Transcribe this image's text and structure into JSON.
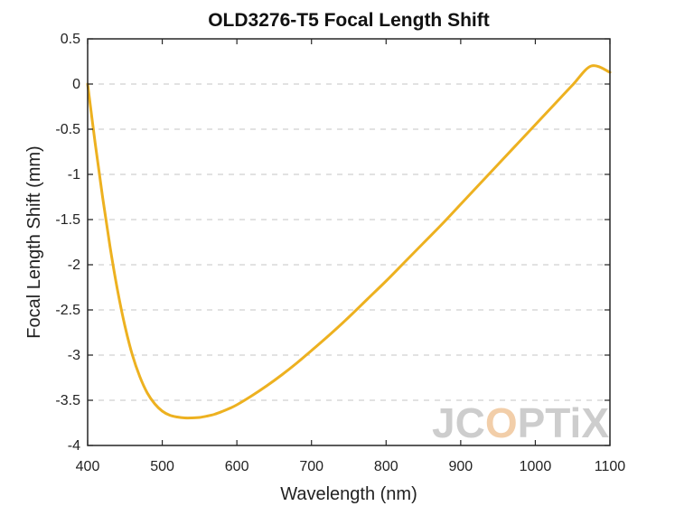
{
  "chart_data": {
    "type": "line",
    "title": "OLD3276-T5 Focal Length Shift",
    "xlabel": "Wavelength (nm)",
    "ylabel": "Focal Length Shift (mm)",
    "xlim": [
      400,
      1100
    ],
    "ylim": [
      -4,
      0.5
    ],
    "xticks": [
      400,
      500,
      600,
      700,
      800,
      900,
      1000,
      1100
    ],
    "yticks": [
      0.5,
      0,
      -0.5,
      -1,
      -1.5,
      -2,
      -2.5,
      -3,
      -3.5,
      -4
    ],
    "xtick_labels": [
      "400",
      "500",
      "600",
      "700",
      "800",
      "900",
      "1000",
      "1100"
    ],
    "ytick_labels": [
      "0.5",
      "0",
      "-0.5",
      "-1",
      "-1.5",
      "-2",
      "-2.5",
      "-3",
      "-3.5",
      "-4"
    ],
    "grid": "horizontal dashed",
    "series": [
      {
        "color": "#EDB120",
        "x": [
          400,
          410,
          420,
          430,
          440,
          450,
          460,
          470,
          480,
          490,
          500,
          510,
          520,
          530,
          540,
          550,
          560,
          570,
          580,
          590,
          600,
          620,
          640,
          660,
          680,
          700,
          725,
          750,
          775,
          800,
          825,
          850,
          875,
          900,
          925,
          950,
          975,
          1000,
          1025,
          1050,
          1075,
          1100
        ],
        "y": [
          0.0,
          -0.65,
          -1.25,
          -1.8,
          -2.28,
          -2.68,
          -3.0,
          -3.24,
          -3.42,
          -3.54,
          -3.62,
          -3.665,
          -3.685,
          -3.695,
          -3.695,
          -3.69,
          -3.675,
          -3.655,
          -3.625,
          -3.59,
          -3.55,
          -3.45,
          -3.34,
          -3.22,
          -3.09,
          -2.95,
          -2.77,
          -2.58,
          -2.38,
          -2.18,
          -1.97,
          -1.76,
          -1.55,
          -1.33,
          -1.11,
          -0.89,
          -0.67,
          -0.45,
          -0.23,
          -0.01,
          0.2,
          0.13
        ]
      }
    ]
  },
  "watermark": {
    "text_part1": "JC",
    "text_part2": "O",
    "text_part3": "PTiX"
  }
}
